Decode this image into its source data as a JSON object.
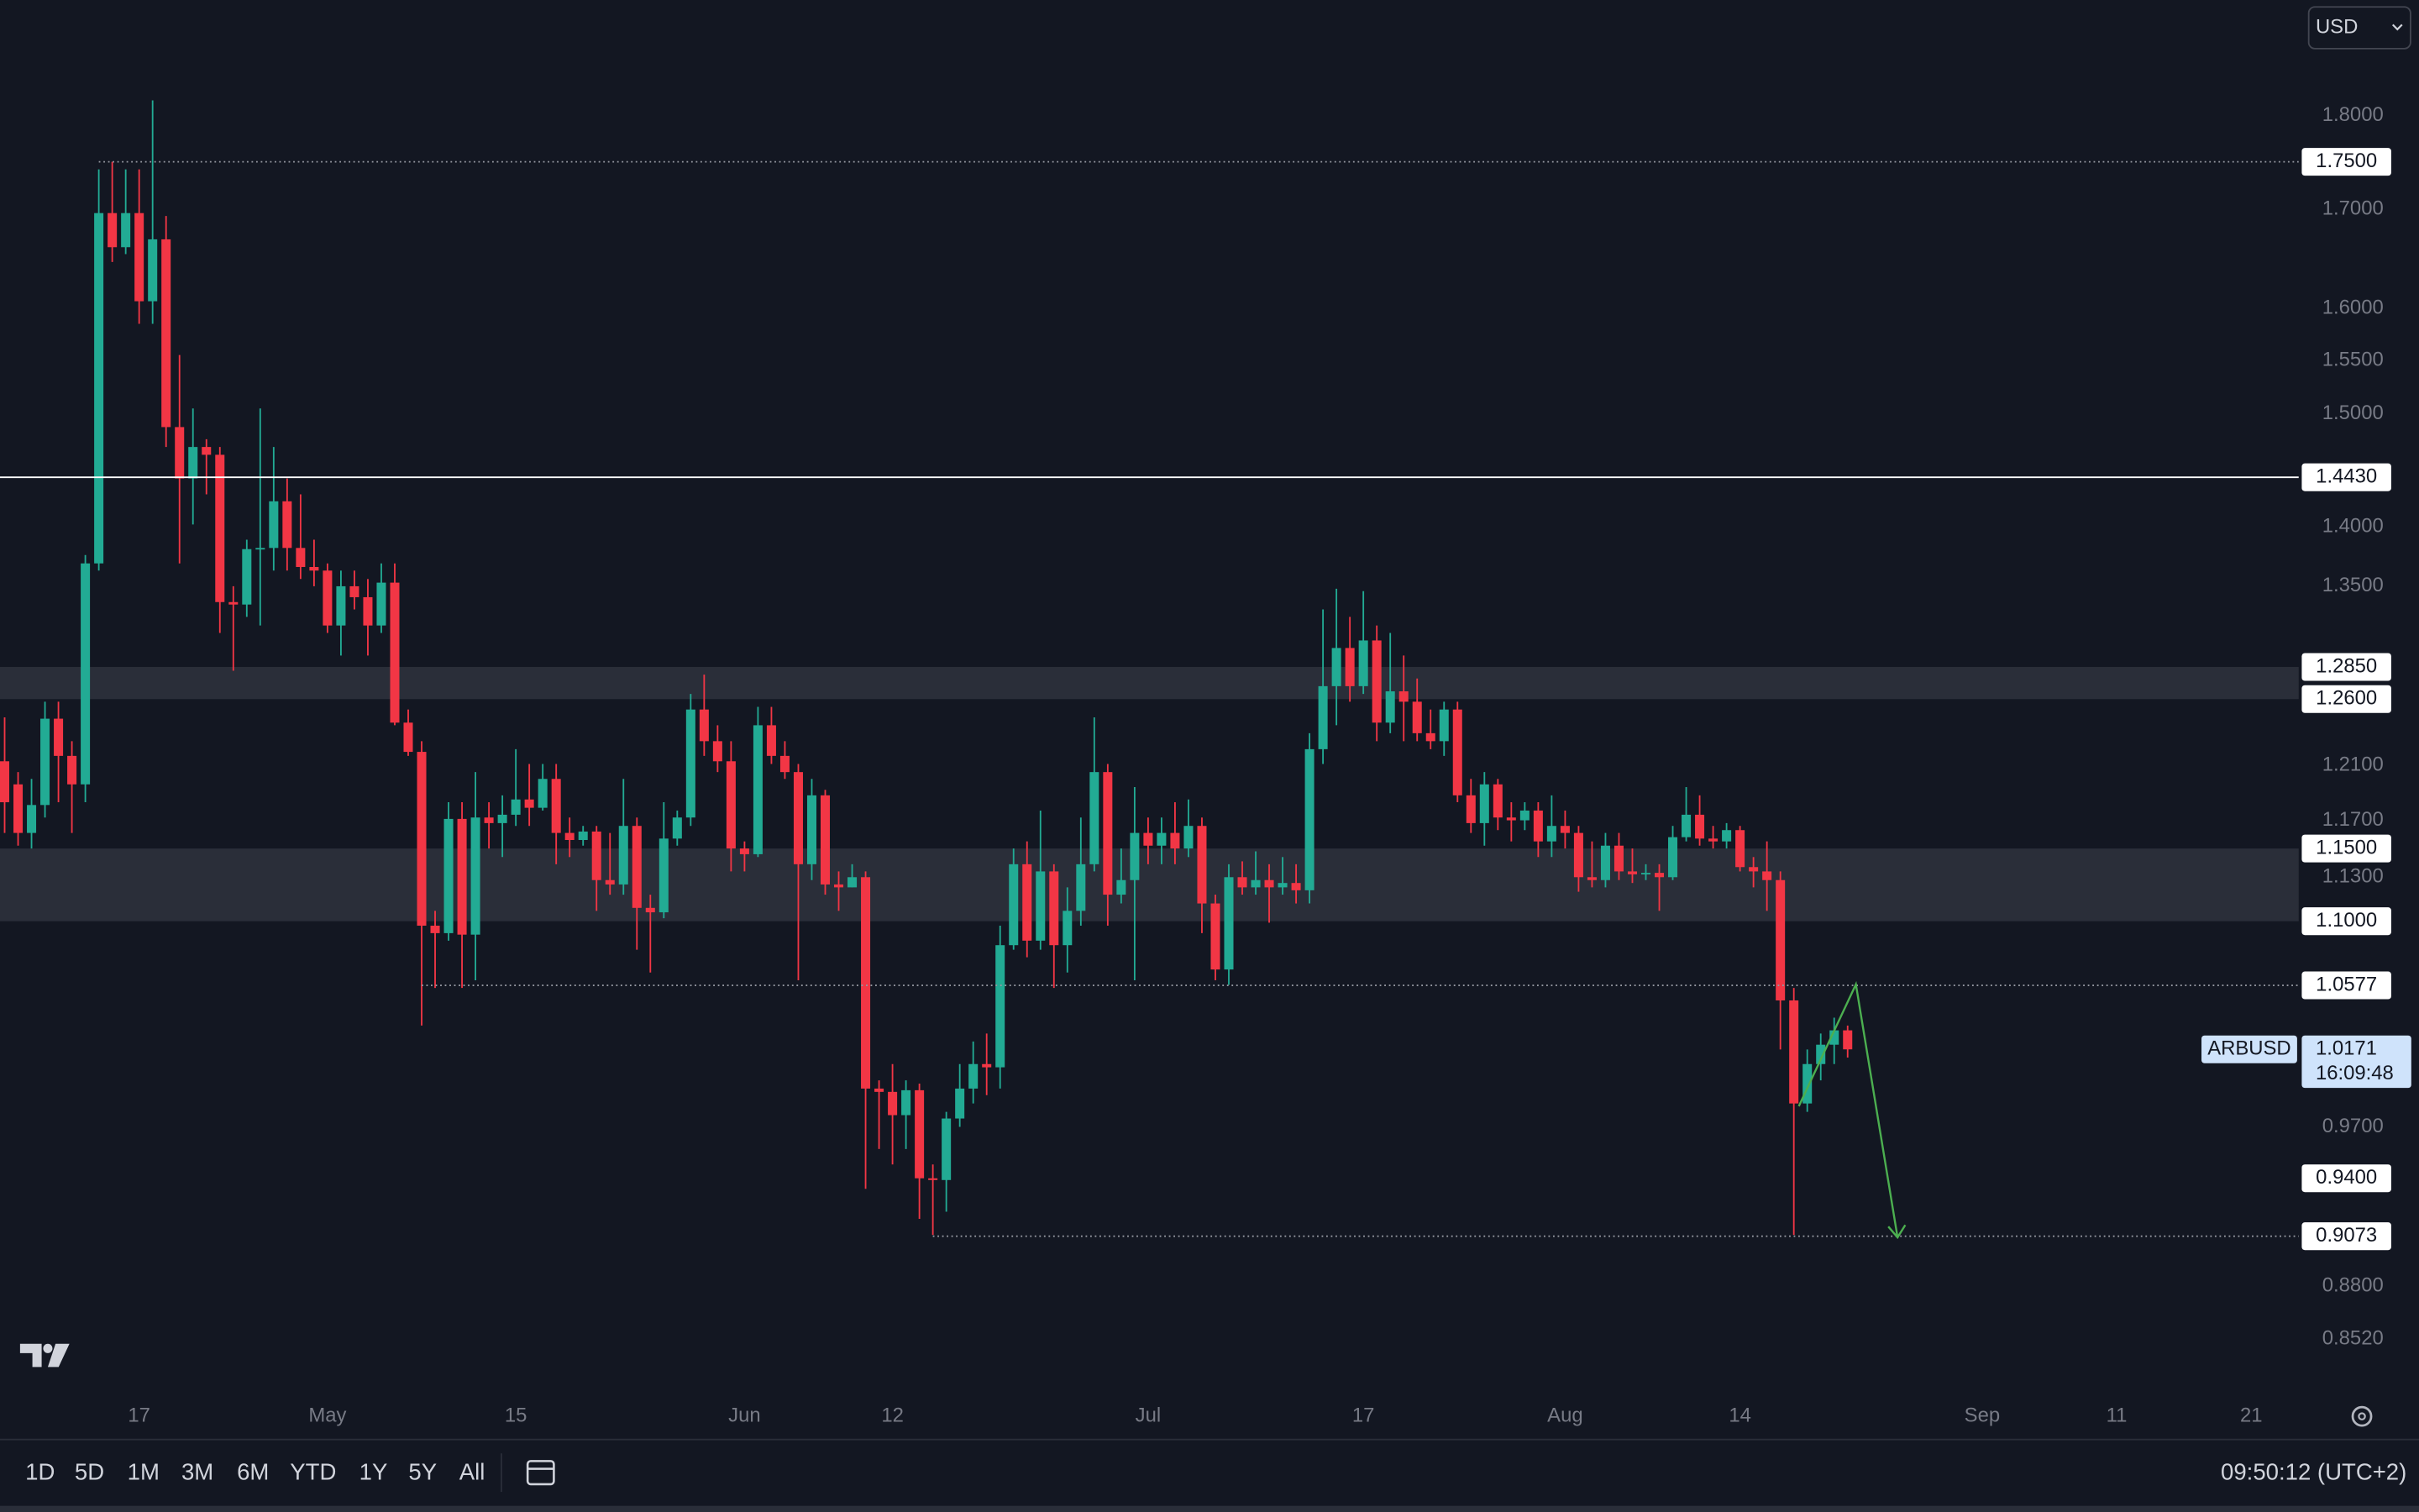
{
  "chart_data": {
    "type": "candlestick",
    "up_color": "#22ab94",
    "down_color": "#f23645",
    "log_scale": true,
    "ylim": [
      0.8227,
      1.932
    ],
    "yticks": [
      {
        "value": 1.8,
        "label": "1.8000"
      },
      {
        "value": 1.7,
        "label": "1.7000"
      },
      {
        "value": 1.6,
        "label": "1.6000"
      },
      {
        "value": 1.55,
        "label": "1.5500"
      },
      {
        "value": 1.5,
        "label": "1.5000"
      },
      {
        "value": 1.4,
        "label": "1.4000"
      },
      {
        "value": 1.35,
        "label": "1.3500"
      },
      {
        "value": 1.21,
        "label": "1.2100"
      },
      {
        "value": 1.17,
        "label": "1.1700"
      },
      {
        "value": 1.13,
        "label": "1.1300"
      },
      {
        "value": 0.97,
        "label": "0.9700"
      },
      {
        "value": 0.88,
        "label": "0.8800"
      },
      {
        "value": 0.852,
        "label": "0.8520"
      }
    ],
    "xticks": [
      {
        "value": 10,
        "label": "17"
      },
      {
        "value": 24,
        "label": "May"
      },
      {
        "value": 38,
        "label": "15"
      },
      {
        "value": 55,
        "label": "Jun"
      },
      {
        "value": 66,
        "label": "12"
      },
      {
        "value": 85,
        "label": "Jul"
      },
      {
        "value": 101,
        "label": "17"
      },
      {
        "value": 116,
        "label": "Aug"
      },
      {
        "value": 129,
        "label": "14"
      },
      {
        "value": 147,
        "label": "Sep"
      },
      {
        "value": 157,
        "label": "11"
      },
      {
        "value": 167,
        "label": "21"
      }
    ],
    "open": [
      1.213,
      1.196,
      1.161,
      1.181,
      1.245,
      1.217,
      1.196,
      1.369,
      1.696,
      1.661,
      1.696,
      1.607,
      1.669,
      1.488,
      1.442,
      1.47,
      1.463,
      1.337,
      1.335,
      1.381,
      1.382,
      1.422,
      1.382,
      1.366,
      1.363,
      1.318,
      1.35,
      1.341,
      1.318,
      1.353,
      1.242,
      1.22,
      1.097,
      1.092,
      1.171,
      1.091,
      1.172,
      1.168,
      1.174,
      1.185,
      1.179,
      1.2,
      1.161,
      1.156,
      1.162,
      1.128,
      1.125,
      1.166,
      1.109,
      1.106,
      1.157,
      1.172,
      1.252,
      1.228,
      1.213,
      1.15,
      1.146,
      1.24,
      1.217,
      1.205,
      1.139,
      1.188,
      1.125,
      1.123,
      1.13,
      0.993,
      0.991,
      0.977,
      0.992,
      0.94,
      0.939,
      0.975,
      0.993,
      1.008,
      1.006,
      1.084,
      1.139,
      1.087,
      1.134,
      1.084,
      1.107,
      1.139,
      1.205,
      1.118,
      1.128,
      1.161,
      1.152,
      1.161,
      1.15,
      1.166,
      1.112,
      1.068,
      1.13,
      1.123,
      1.128,
      1.123,
      1.126,
      1.121,
      1.222,
      1.27,
      1.3,
      1.27,
      1.306,
      1.242,
      1.266,
      1.258,
      1.234,
      1.228,
      1.252,
      1.188,
      1.168,
      1.196,
      1.172,
      1.17,
      1.177,
      1.155,
      1.166,
      1.161,
      1.13,
      1.128,
      1.152,
      1.134,
      1.132,
      1.133,
      1.13,
      1.158,
      1.174,
      1.157,
      1.155,
      1.163,
      1.137,
      1.134,
      1.128,
      1.048,
      0.984,
      1.008,
      1.02,
      1.029
    ],
    "high": [
      1.246,
      1.205,
      1.2,
      1.258,
      1.258,
      1.228,
      1.376,
      1.742,
      1.75,
      1.742,
      1.742,
      1.817,
      1.693,
      1.555,
      1.505,
      1.477,
      1.47,
      1.35,
      1.389,
      1.505,
      1.47,
      1.442,
      1.428,
      1.389,
      1.369,
      1.363,
      1.363,
      1.356,
      1.369,
      1.369,
      1.252,
      1.228,
      1.107,
      1.183,
      1.183,
      1.205,
      1.183,
      1.188,
      1.222,
      1.211,
      1.211,
      1.211,
      1.172,
      1.166,
      1.166,
      1.161,
      1.2,
      1.172,
      1.118,
      1.183,
      1.177,
      1.264,
      1.279,
      1.24,
      1.228,
      1.155,
      1.254,
      1.254,
      1.228,
      1.211,
      1.2,
      1.192,
      1.134,
      1.139,
      1.134,
      0.998,
      1.008,
      0.998,
      0.996,
      0.948,
      0.979,
      1.008,
      1.022,
      1.027,
      1.097,
      1.15,
      1.155,
      1.177,
      1.139,
      1.123,
      1.172,
      1.246,
      1.211,
      1.15,
      1.194,
      1.172,
      1.172,
      1.183,
      1.185,
      1.172,
      1.118,
      1.139,
      1.141,
      1.148,
      1.139,
      1.144,
      1.139,
      1.234,
      1.331,
      1.348,
      1.325,
      1.346,
      1.318,
      1.312,
      1.294,
      1.276,
      1.252,
      1.258,
      1.258,
      1.2,
      1.205,
      1.2,
      1.183,
      1.183,
      1.183,
      1.188,
      1.177,
      1.166,
      1.155,
      1.161,
      1.161,
      1.15,
      1.139,
      1.139,
      1.166,
      1.194,
      1.188,
      1.166,
      1.168,
      1.166,
      1.144,
      1.155,
      1.134,
      1.056,
      1.017,
      1.027,
      1.037,
      1.032
    ],
    "low": [
      1.161,
      1.152,
      1.15,
      1.172,
      1.183,
      1.161,
      1.183,
      1.363,
      1.646,
      1.654,
      1.585,
      1.585,
      1.47,
      1.369,
      1.402,
      1.428,
      1.312,
      1.282,
      1.325,
      1.318,
      1.363,
      1.363,
      1.356,
      1.35,
      1.312,
      1.294,
      1.331,
      1.294,
      1.312,
      1.24,
      1.217,
      1.032,
      1.056,
      1.087,
      1.056,
      1.061,
      1.15,
      1.144,
      1.166,
      1.166,
      1.177,
      1.139,
      1.144,
      1.152,
      1.107,
      1.118,
      1.118,
      1.081,
      1.066,
      1.102,
      1.152,
      1.166,
      1.217,
      1.205,
      1.134,
      1.134,
      1.144,
      1.211,
      1.2,
      1.061,
      1.128,
      1.118,
      1.107,
      1.123,
      0.934,
      0.957,
      0.948,
      0.957,
      0.917,
      0.908,
      0.921,
      0.97,
      0.984,
      0.989,
      0.993,
      1.081,
      1.076,
      1.081,
      1.056,
      1.066,
      1.097,
      1.134,
      1.097,
      1.112,
      1.061,
      1.139,
      1.139,
      1.139,
      1.144,
      1.092,
      1.061,
      1.058,
      1.118,
      1.118,
      1.099,
      1.118,
      1.112,
      1.112,
      1.211,
      1.24,
      1.258,
      1.264,
      1.228,
      1.234,
      1.228,
      1.228,
      1.222,
      1.217,
      1.183,
      1.161,
      1.152,
      1.163,
      1.155,
      1.163,
      1.144,
      1.144,
      1.15,
      1.12,
      1.123,
      1.123,
      1.128,
      1.126,
      1.128,
      1.107,
      1.128,
      1.155,
      1.152,
      1.15,
      1.15,
      1.134,
      1.123,
      1.107,
      1.017,
      0.908,
      0.979,
      0.998,
      1.008,
      1.012
    ],
    "close": [
      1.183,
      1.161,
      1.181,
      1.245,
      1.217,
      1.196,
      1.369,
      1.696,
      1.661,
      1.696,
      1.607,
      1.669,
      1.488,
      1.442,
      1.47,
      1.463,
      1.337,
      1.335,
      1.381,
      1.382,
      1.422,
      1.382,
      1.366,
      1.363,
      1.318,
      1.35,
      1.341,
      1.318,
      1.353,
      1.242,
      1.22,
      1.097,
      1.092,
      1.171,
      1.091,
      1.172,
      1.168,
      1.174,
      1.185,
      1.179,
      1.2,
      1.161,
      1.156,
      1.162,
      1.128,
      1.125,
      1.166,
      1.109,
      1.106,
      1.157,
      1.172,
      1.252,
      1.228,
      1.213,
      1.15,
      1.146,
      1.24,
      1.217,
      1.205,
      1.139,
      1.188,
      1.125,
      1.123,
      1.13,
      0.993,
      0.991,
      0.977,
      0.992,
      0.94,
      0.939,
      0.975,
      0.993,
      1.008,
      1.006,
      1.084,
      1.139,
      1.087,
      1.134,
      1.084,
      1.107,
      1.139,
      1.205,
      1.118,
      1.128,
      1.161,
      1.152,
      1.161,
      1.15,
      1.166,
      1.112,
      1.068,
      1.13,
      1.123,
      1.128,
      1.123,
      1.126,
      1.121,
      1.222,
      1.27,
      1.3,
      1.27,
      1.306,
      1.242,
      1.266,
      1.258,
      1.234,
      1.228,
      1.252,
      1.188,
      1.168,
      1.196,
      1.172,
      1.17,
      1.177,
      1.155,
      1.166,
      1.161,
      1.13,
      1.128,
      1.152,
      1.134,
      1.132,
      1.133,
      1.13,
      1.158,
      1.174,
      1.157,
      1.155,
      1.163,
      1.137,
      1.134,
      1.128,
      1.048,
      0.984,
      1.008,
      1.02,
      1.029,
      1.0171
    ],
    "zones": [
      {
        "from": 1.26,
        "to": 1.285
      },
      {
        "from": 1.1,
        "to": 1.15
      }
    ],
    "levels": [
      {
        "value": 1.75,
        "label": "1.7500",
        "line": "dotted",
        "start": 7
      },
      {
        "value": 1.443,
        "label": "1.4430",
        "line": "solid"
      },
      {
        "value": 1.285,
        "label": "1.2850"
      },
      {
        "value": 1.26,
        "label": "1.2600"
      },
      {
        "value": 1.15,
        "label": "1.1500"
      },
      {
        "value": 1.1,
        "label": "1.1000"
      },
      {
        "value": 1.0577,
        "label": "1.0577",
        "line": "dotted",
        "start": 31
      },
      {
        "value": 0.94,
        "label": "0.9400"
      },
      {
        "value": 0.9073,
        "label": "0.9073",
        "line": "dotted",
        "start": 69
      }
    ],
    "last": {
      "symbol": "ARBUSD",
      "price": 1.0171,
      "countdown": "16:09:48"
    },
    "currency": "USD",
    "ranges": [
      "1D",
      "5D",
      "1M",
      "3M",
      "6M",
      "YTD",
      "1Y",
      "5Y",
      "All"
    ],
    "clock": "09:50:12 (UTC+2)"
  }
}
